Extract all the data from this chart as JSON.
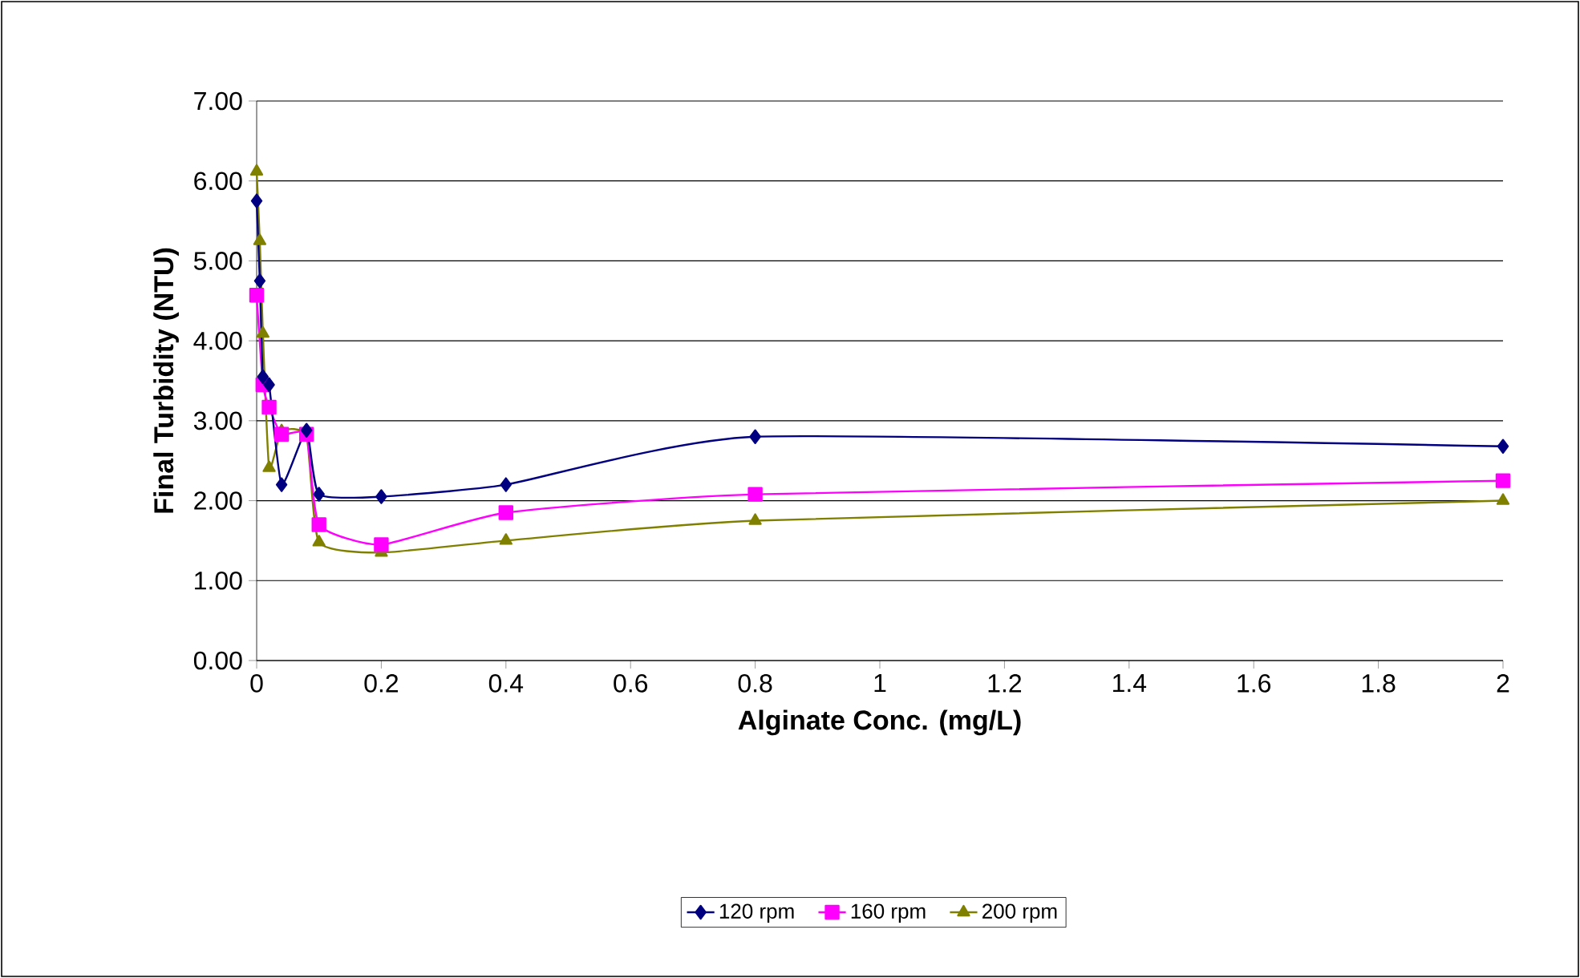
{
  "chart_data": {
    "type": "line",
    "xlabel": "Alginate Conc. (mg/L)",
    "ylabel": "Final Turbidity (NTU)",
    "xlim": [
      0,
      2
    ],
    "xticks": [
      0,
      0.2,
      0.4,
      0.6,
      0.8,
      1,
      1.2,
      1.4,
      1.6,
      1.8,
      2
    ],
    "ylim": [
      0,
      7
    ],
    "yticks": [
      {
        "value": 0,
        "label": "0.00"
      },
      {
        "value": 1,
        "label": "1.00"
      },
      {
        "value": 2,
        "label": "2.00"
      },
      {
        "value": 3,
        "label": "3.00"
      },
      {
        "value": 4,
        "label": "4.00"
      },
      {
        "value": 5,
        "label": "5.00"
      },
      {
        "value": 6,
        "label": "6.00"
      },
      {
        "value": 7,
        "label": "7.00"
      }
    ],
    "grid": "y",
    "legend": "bottom",
    "line_style": "solid",
    "series": [
      {
        "name": "120 rpm",
        "color": "#000080",
        "marker": "diamond",
        "x": [
          0,
          0.005,
          0.01,
          0.02,
          0.04,
          0.08,
          0.1,
          0.2,
          0.4,
          0.8,
          2
        ],
        "values": [
          5.75,
          4.75,
          3.55,
          3.45,
          2.2,
          2.88,
          2.08,
          2.05,
          2.2,
          2.8,
          2.68
        ]
      },
      {
        "name": "160 rpm",
        "color": "#ff00ff",
        "marker": "square",
        "x": [
          0,
          0.01,
          0.02,
          0.04,
          0.08,
          0.1,
          0.2,
          0.4,
          0.8,
          2
        ],
        "values": [
          4.57,
          3.45,
          3.17,
          2.83,
          2.83,
          1.7,
          1.45,
          1.85,
          2.08,
          2.25
        ]
      },
      {
        "name": "200 rpm",
        "color": "#808000",
        "marker": "triangle",
        "x": [
          0,
          0.005,
          0.01,
          0.02,
          0.04,
          0.08,
          0.1,
          0.2,
          0.4,
          0.8,
          2
        ],
        "values": [
          6.12,
          5.25,
          4.09,
          2.41,
          2.87,
          2.81,
          1.48,
          1.35,
          1.5,
          1.75,
          2.0
        ]
      }
    ]
  }
}
